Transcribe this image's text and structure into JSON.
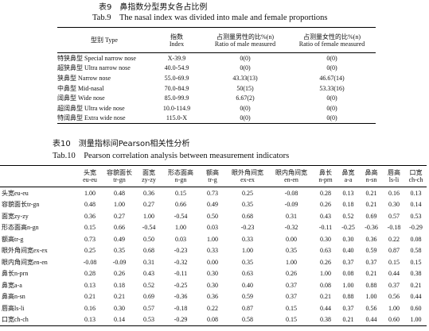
{
  "table9": {
    "title": "表9　鼻指数分型男女各占比例",
    "subtitle": "Tab.9　The nasal index was divided into male and female proportions",
    "headers": [
      [
        "型别 Type"
      ],
      [
        "指数",
        "Index"
      ],
      [
        "占测量男性的比%(n)",
        "Ratio of male measured"
      ],
      [
        "占测量女性的比%(n)",
        "Ratio of female measured"
      ]
    ],
    "rows": [
      [
        "特狭鼻型 Special narrow nose",
        "X-39.9",
        "0(0)",
        "0(0)"
      ],
      [
        "超狭鼻型 Ultra narrow nose",
        "40.0-54.9",
        "0(0)",
        "0(0)"
      ],
      [
        "狭鼻型 Narrow nose",
        "55.0-69.9",
        "43.33(13)",
        "46.67(14)"
      ],
      [
        "中鼻型 Mid-nasal",
        "70.0-84.9",
        "50(15)",
        "53.33(16)"
      ],
      [
        "阔鼻型 Wide nose",
        "85.0-99.9",
        "6.67(2)",
        "0(0)"
      ],
      [
        "超阔鼻型 Ultra wide nose",
        "10.0-114.9",
        "0(0)",
        "0(0)"
      ],
      [
        "特阔鼻型 Extra wide nose",
        "115.0-X",
        "0(0)",
        "0(0)"
      ]
    ]
  },
  "table10": {
    "title": "表10　测量指标间Pearson相关性分析",
    "subtitle": "Tab.10　Pearson correlation analysis between measurement indicators",
    "headers": [
      [
        "头宽",
        "eu-eu"
      ],
      [
        "容貌面长",
        "tr-gn"
      ],
      [
        "面宽",
        "zy-zy"
      ],
      [
        "形态面高",
        "n-gn"
      ],
      [
        "额高",
        "tr-g"
      ],
      [
        "眼外角间宽",
        "ex-ex"
      ],
      [
        "眼内角间宽",
        "en-en"
      ],
      [
        "鼻长",
        "n-prn"
      ],
      [
        "鼻宽",
        "a-a"
      ],
      [
        "鼻高",
        "n-sn"
      ],
      [
        "唇高",
        "ls-li"
      ],
      [
        "口宽",
        "ch-ch"
      ]
    ],
    "rows": [
      [
        "头宽eu-eu",
        "1.00",
        "0.48",
        "0.36",
        "0.15",
        "0.73",
        "0.25",
        "-0.08",
        "0.28",
        "0.13",
        "0.21",
        "0.16",
        "0.13"
      ],
      [
        "容貌面长tr-gn",
        "0.48",
        "1.00",
        "0.27",
        "0.66",
        "0.49",
        "0.35",
        "-0.09",
        "0.26",
        "0.18",
        "0.21",
        "0.30",
        "0.14"
      ],
      [
        "面宽zy-zy",
        "0.36",
        "0.27",
        "1.00",
        "-0.54",
        "0.50",
        "0.68",
        "0.31",
        "0.43",
        "0.52",
        "0.69",
        "0.57",
        "0.53"
      ],
      [
        "形态面高n-gn",
        "0.15",
        "0.66",
        "-0.54",
        "1.00",
        "0.03",
        "-0.23",
        "-0.32",
        "-0.11",
        "-0.25",
        "-0.36",
        "-0.18",
        "-0.29"
      ],
      [
        "额高tr-g",
        "0.73",
        "0.49",
        "0.50",
        "0.03",
        "1.00",
        "0.33",
        "0.00",
        "0.30",
        "0.30",
        "0.36",
        "0.22",
        "0.08"
      ],
      [
        "眼外角间宽ex-ex",
        "0.25",
        "0.35",
        "0.68",
        "-0.23",
        "0.33",
        "1.00",
        "0.35",
        "0.63",
        "0.40",
        "0.59",
        "0.87",
        "0.58"
      ],
      [
        "眼内角间宽en-en",
        "-0.08",
        "-0.09",
        "0.31",
        "-0.32",
        "0.00",
        "0.35",
        "1.00",
        "0.26",
        "0.37",
        "0.37",
        "0.15",
        "0.15"
      ],
      [
        "鼻长n-prn",
        "0.28",
        "0.26",
        "0.43",
        "-0.11",
        "0.30",
        "0.63",
        "0.26",
        "1.00",
        "0.08",
        "0.21",
        "0.44",
        "0.38"
      ],
      [
        "鼻宽a-a",
        "0.13",
        "0.18",
        "0.52",
        "-0.25",
        "0.30",
        "0.40",
        "0.37",
        "0.08",
        "1.00",
        "0.88",
        "0.37",
        "0.21"
      ],
      [
        "鼻高n-sn",
        "0.21",
        "0.21",
        "0.69",
        "-0.36",
        "0.36",
        "0.59",
        "0.37",
        "0.21",
        "0.88",
        "1.00",
        "0.56",
        "0.44"
      ],
      [
        "唇高ls-li",
        "0.16",
        "0.30",
        "0.57",
        "-0.18",
        "0.22",
        "0.87",
        "0.15",
        "0.44",
        "0.37",
        "0.56",
        "1.00",
        "0.60"
      ],
      [
        "口宽ch-ch",
        "0.13",
        "0.14",
        "0.53",
        "-0.29",
        "0.08",
        "0.58",
        "0.15",
        "0.38",
        "0.21",
        "0.44",
        "0.60",
        "1.00"
      ]
    ]
  }
}
